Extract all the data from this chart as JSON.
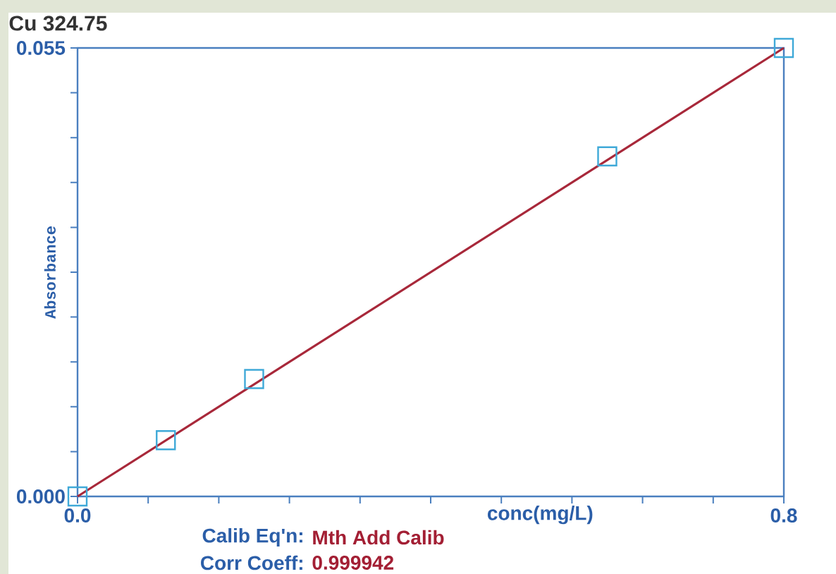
{
  "chart_data": {
    "type": "scatter",
    "title": "Cu 324.75",
    "xlabel": "conc(mg/L)",
    "ylabel": "Absorbance",
    "series": [
      {
        "color": "#3fa9d8",
        "marker": "square",
        "x": [
          0,
          0.1,
          0.2,
          0.6,
          0.8
        ],
        "values": [
          0,
          0.0069,
          0.0144,
          0.0417,
          0.055
        ]
      },
      {
        "type": "line",
        "color": "#a8283a",
        "x": [
          0,
          0.8
        ],
        "values": [
          0,
          0.055
        ]
      }
    ],
    "xlim": [
      0,
      0.8
    ],
    "ylim": [
      0,
      0.055
    ],
    "xticks": [
      {
        "value": 0,
        "label": "0.0"
      },
      {
        "value": 0.08,
        "label": null
      },
      {
        "value": 0.16,
        "label": null
      },
      {
        "value": 0.24,
        "label": null
      },
      {
        "value": 0.32,
        "label": null
      },
      {
        "value": 0.4,
        "label": null
      },
      {
        "value": 0.48,
        "label": null
      },
      {
        "value": 0.56,
        "label": null
      },
      {
        "value": 0.64,
        "label": null
      },
      {
        "value": 0.72,
        "label": null
      },
      {
        "value": 0.8,
        "label": "0.8"
      }
    ],
    "yticks": [
      {
        "value": 0,
        "label": "0.000"
      },
      {
        "value": 0.0055,
        "label": null
      },
      {
        "value": 0.011,
        "label": null
      },
      {
        "value": 0.0165,
        "label": null
      },
      {
        "value": 0.022,
        "label": null
      },
      {
        "value": 0.0275,
        "label": null
      },
      {
        "value": 0.033,
        "label": null
      },
      {
        "value": 0.0385,
        "label": null
      },
      {
        "value": 0.044,
        "label": null
      },
      {
        "value": 0.0495,
        "label": null
      },
      {
        "value": 0.055,
        "label": "0.055"
      }
    ],
    "annotations": [
      "Calib Eq'n:",
      "Mth Add Calib",
      "Corr Coeff:",
      "0.999942"
    ],
    "grid": false
  }
}
